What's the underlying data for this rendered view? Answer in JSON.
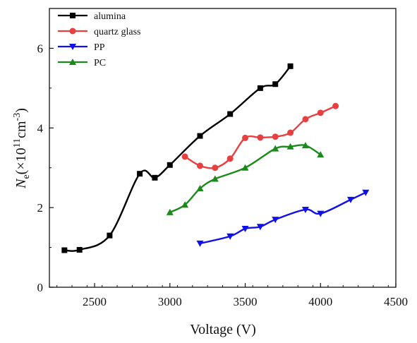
{
  "chart_data": {
    "type": "line",
    "xlabel": "Voltage (V)",
    "ylabel": {
      "main": "N",
      "sub": "e",
      "open": "(×10",
      "sup1": "11",
      "unit": "cm",
      "sup2": "-3",
      "close": ")"
    },
    "xlim": [
      2200,
      4500
    ],
    "ylim": [
      0,
      7
    ],
    "xticks": [
      2500,
      3000,
      3500,
      4000,
      4500
    ],
    "yticks": [
      0,
      2,
      4,
      6
    ],
    "legend_position": "top-left",
    "series": [
      {
        "name": "alumina",
        "color": "#000000",
        "marker": "square",
        "x": [
          2300,
          2400,
          2600,
          2800,
          2900,
          3000,
          3200,
          3400,
          3600,
          3700,
          3800
        ],
        "y": [
          0.93,
          0.94,
          1.3,
          2.85,
          2.75,
          3.07,
          3.8,
          4.35,
          5.0,
          5.1,
          5.55
        ]
      },
      {
        "name": "quartz glass",
        "color": "#e84040",
        "marker": "circle",
        "x": [
          3100,
          3200,
          3300,
          3400,
          3500,
          3600,
          3700,
          3800,
          3900,
          4000,
          4100
        ],
        "y": [
          3.28,
          3.05,
          3.0,
          3.23,
          3.75,
          3.76,
          3.78,
          3.88,
          4.22,
          4.38,
          4.55
        ]
      },
      {
        "name": "PP",
        "color": "#1010e8",
        "marker": "triangle-down",
        "x": [
          3200,
          3400,
          3500,
          3600,
          3700,
          3900,
          4000,
          4200,
          4300
        ],
        "y": [
          1.1,
          1.28,
          1.47,
          1.52,
          1.7,
          1.95,
          1.85,
          2.2,
          2.38
        ]
      },
      {
        "name": "PC",
        "color": "#1a8a1a",
        "marker": "triangle-up",
        "x": [
          3000,
          3100,
          3200,
          3300,
          3500,
          3700,
          3800,
          3900,
          4000
        ],
        "y": [
          1.88,
          2.07,
          2.48,
          2.72,
          3.0,
          3.48,
          3.53,
          3.56,
          3.33
        ]
      }
    ]
  }
}
